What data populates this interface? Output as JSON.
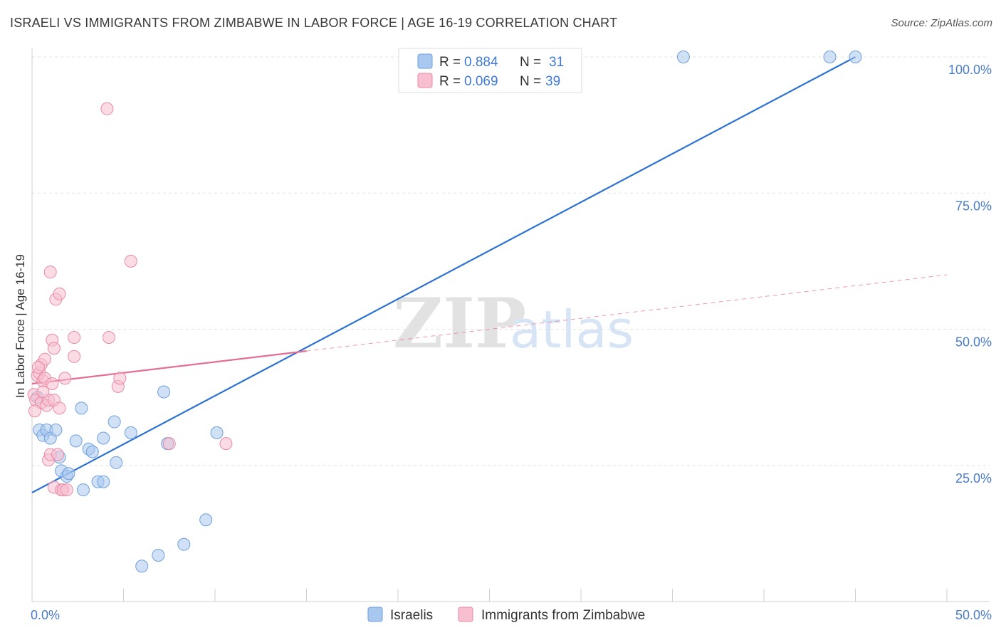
{
  "title": "ISRAELI VS IMMIGRANTS FROM ZIMBABWE IN LABOR FORCE | AGE 16-19 CORRELATION CHART",
  "source": "Source: ZipAtlas.com",
  "watermark": {
    "zip": "ZIP",
    "atlas": "atlas"
  },
  "legend": {
    "rows": [
      {
        "r_label": "R = ",
        "r_value": "0.884",
        "n_label": "N = ",
        "n_value": "31",
        "color": "#a9c8ef",
        "stroke": "#6f9fdc"
      },
      {
        "r_label": "R = ",
        "r_value": "0.069",
        "n_label": "N = ",
        "n_value": "39",
        "color": "#f7bfd0",
        "stroke": "#e88aa6"
      }
    ]
  },
  "bottom_legend": [
    {
      "label": "Israelis",
      "color": "#a9c8ef",
      "stroke": "#6f9fdc"
    },
    {
      "label": "Immigrants from Zimbabwe",
      "color": "#f7bfd0",
      "stroke": "#e88aa6"
    }
  ],
  "chart_data": {
    "type": "scatter",
    "title": "ISRAELI VS IMMIGRANTS FROM ZIMBABWE IN LABOR FORCE | AGE 16-19 CORRELATION CHART",
    "xlabel": "",
    "ylabel": "In Labor Force | Age 16-19",
    "xlim": [
      0,
      50
    ],
    "ylim": [
      0,
      100
    ],
    "x_tick_labels": [
      "0.0%",
      "50.0%"
    ],
    "y_tick_labels": [
      "100.0%",
      "75.0%",
      "50.0%",
      "25.0%"
    ],
    "y_ticks": [
      100,
      75,
      50,
      25
    ],
    "grid": true,
    "legend_position": "top-center",
    "series": [
      {
        "name": "Israelis",
        "color": "#a9c8ef",
        "stroke": "#6f9fdc",
        "line_color": "#2d72d2",
        "trend": {
          "x": [
            0,
            45
          ],
          "y": [
            20.0,
            100.0
          ],
          "dashed_extension": false
        },
        "points": [
          [
            0.3,
            37.5
          ],
          [
            0.4,
            31.5
          ],
          [
            0.6,
            30.5
          ],
          [
            0.8,
            31.5
          ],
          [
            1.0,
            30.0
          ],
          [
            1.3,
            31.5
          ],
          [
            1.5,
            26.5
          ],
          [
            1.6,
            24.0
          ],
          [
            1.9,
            23.0
          ],
          [
            2.0,
            23.5
          ],
          [
            2.4,
            29.5
          ],
          [
            2.8,
            20.5
          ],
          [
            2.7,
            35.5
          ],
          [
            3.1,
            28.0
          ],
          [
            3.3,
            27.5
          ],
          [
            3.6,
            22.0
          ],
          [
            3.9,
            22.0
          ],
          [
            3.9,
            30.0
          ],
          [
            4.5,
            33.0
          ],
          [
            4.6,
            25.5
          ],
          [
            5.4,
            31.0
          ],
          [
            6.0,
            6.5
          ],
          [
            6.9,
            8.5
          ],
          [
            7.2,
            38.5
          ],
          [
            7.4,
            29.0
          ],
          [
            8.3,
            10.5
          ],
          [
            9.5,
            15.0
          ],
          [
            10.1,
            31.0
          ],
          [
            35.6,
            100.0
          ],
          [
            43.6,
            100.0
          ],
          [
            45.0,
            100.0
          ]
        ]
      },
      {
        "name": "Immigrants from Zimbabwe",
        "color": "#f7bfd0",
        "stroke": "#e88aa6",
        "line_color": "#e56c96",
        "trend": {
          "x": [
            0,
            15
          ],
          "y": [
            40.0,
            46.0
          ],
          "dashed_extension": true,
          "dash_x": [
            15,
            50
          ],
          "dash_y": [
            46.0,
            60.0
          ]
        },
        "points": [
          [
            0.1,
            38.0
          ],
          [
            0.2,
            37.0
          ],
          [
            0.3,
            41.5
          ],
          [
            0.4,
            42.0
          ],
          [
            0.5,
            36.5
          ],
          [
            0.5,
            43.5
          ],
          [
            0.6,
            40.5
          ],
          [
            0.7,
            44.5
          ],
          [
            0.7,
            41.0
          ],
          [
            0.8,
            36.0
          ],
          [
            0.9,
            26.0
          ],
          [
            0.9,
            37.0
          ],
          [
            1.0,
            60.5
          ],
          [
            1.0,
            27.0
          ],
          [
            1.1,
            40.0
          ],
          [
            1.1,
            48.0
          ],
          [
            1.2,
            37.0
          ],
          [
            1.2,
            46.5
          ],
          [
            1.2,
            21.0
          ],
          [
            1.3,
            55.5
          ],
          [
            1.4,
            27.0
          ],
          [
            1.5,
            35.5
          ],
          [
            1.5,
            56.5
          ],
          [
            1.6,
            20.5
          ],
          [
            1.7,
            20.5
          ],
          [
            1.8,
            41.0
          ],
          [
            1.9,
            20.5
          ],
          [
            2.3,
            45.0
          ],
          [
            2.3,
            48.5
          ],
          [
            4.1,
            90.5
          ],
          [
            4.2,
            48.5
          ],
          [
            4.7,
            39.5
          ],
          [
            4.8,
            41.0
          ],
          [
            5.4,
            62.5
          ],
          [
            7.5,
            29.0
          ],
          [
            10.6,
            29.0
          ],
          [
            0.15,
            35.0
          ],
          [
            0.35,
            43.0
          ],
          [
            0.6,
            38.5
          ]
        ]
      }
    ]
  }
}
